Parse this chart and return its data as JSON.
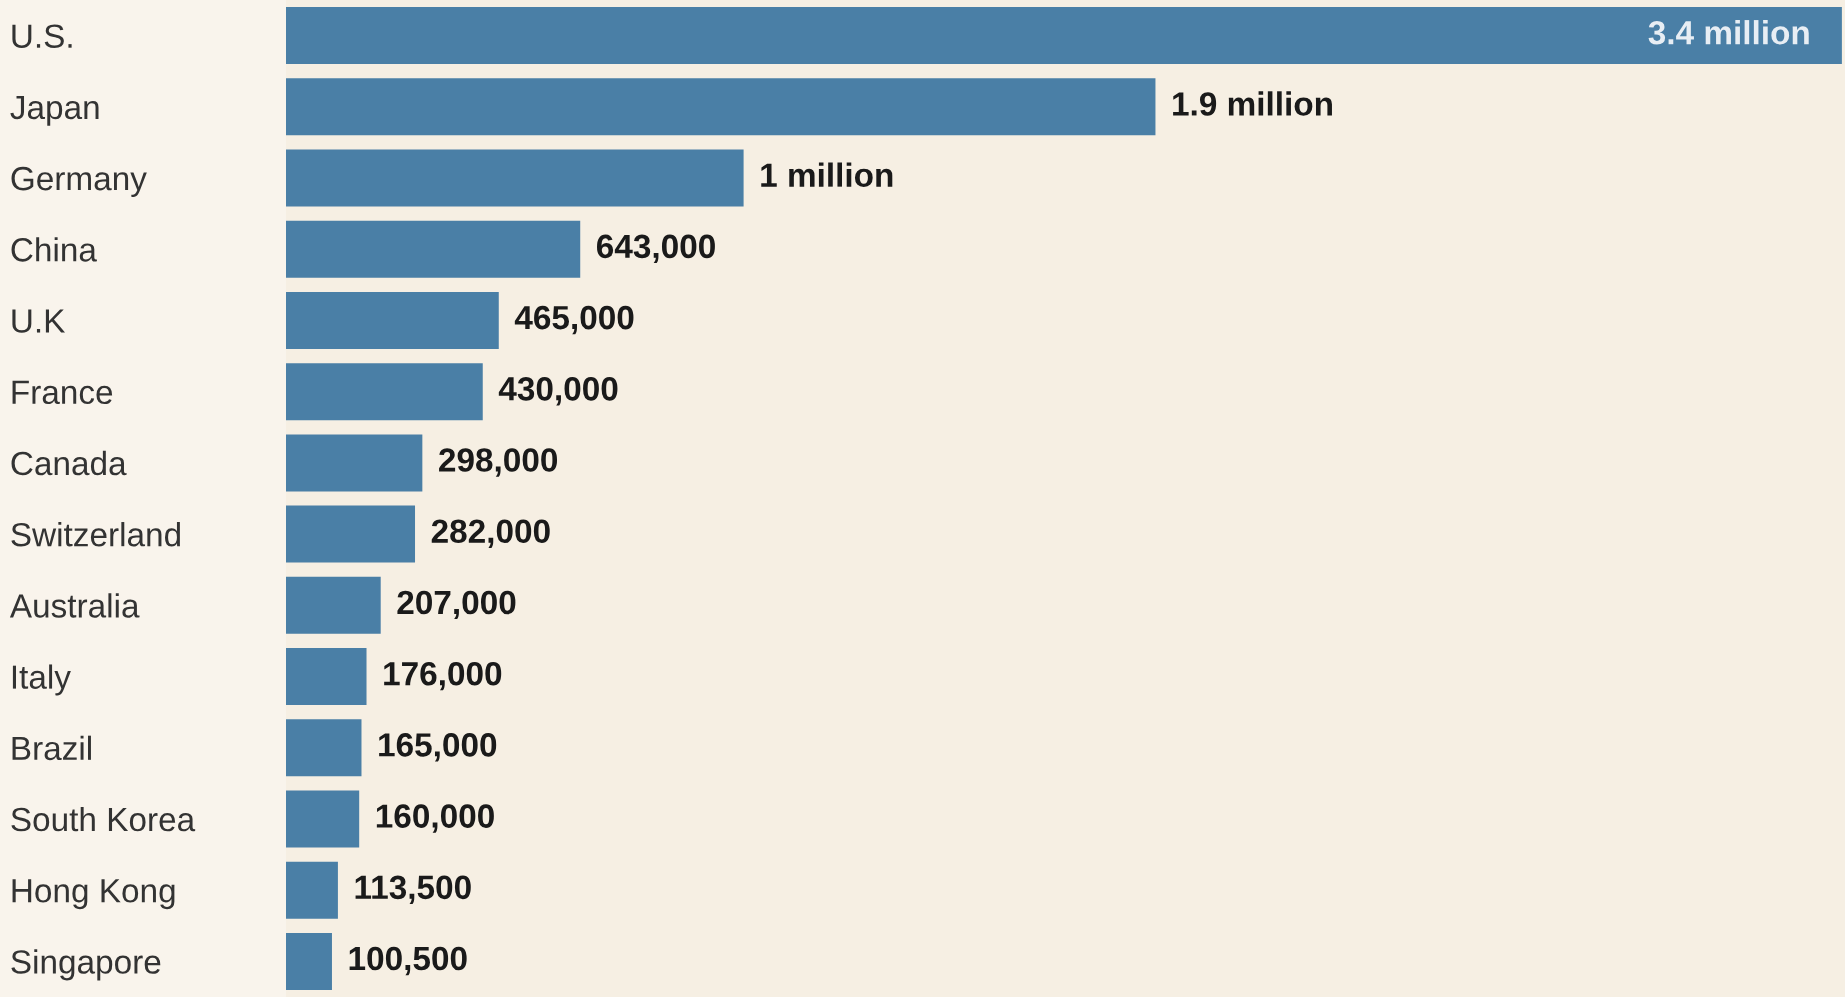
{
  "chart_data": {
    "type": "bar",
    "orientation": "horizontal",
    "categories": [
      "U.S.",
      "Japan",
      "Germany",
      "China",
      "U.K",
      "France",
      "Canada",
      "Switzerland",
      "Australia",
      "Italy",
      "Brazil",
      "South Korea",
      "Hong Kong",
      "Singapore"
    ],
    "values": [
      3400000,
      1900000,
      1000000,
      643000,
      465000,
      430000,
      298000,
      282000,
      207000,
      176000,
      165000,
      160000,
      113500,
      100500
    ],
    "value_labels": [
      "3.4 million",
      "1.9 million",
      "1 million",
      "643,000",
      "465,000",
      "430,000",
      "298,000",
      "282,000",
      "207,000",
      "176,000",
      "165,000",
      "160,000",
      "113,500",
      "100,500"
    ],
    "color": "#4a7fa6",
    "grid": false,
    "legend": false
  }
}
